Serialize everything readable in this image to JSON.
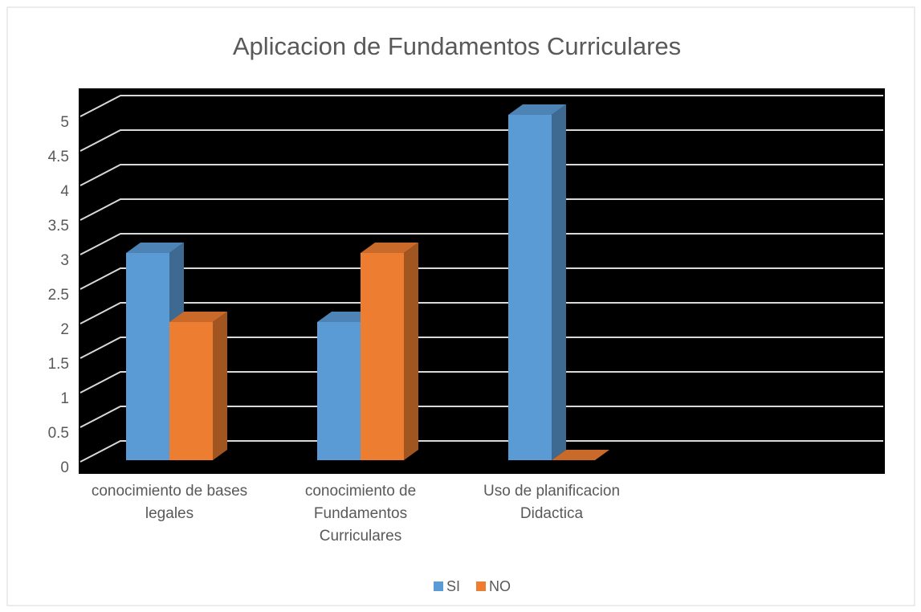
{
  "chart_data": {
    "type": "bar3d",
    "title": "Aplicacion de Fundamentos Curriculares",
    "categories": [
      "conocimiento de bases legales",
      "conocimiento de Fundamentos Curriculares",
      "Uso de planificacion Didactica",
      null
    ],
    "series": [
      {
        "name": "SI",
        "color": "#5b9bd5",
        "values": [
          3,
          2,
          5,
          null
        ]
      },
      {
        "name": "NO",
        "color": "#ed7d31",
        "values": [
          2,
          3,
          0,
          null
        ]
      }
    ],
    "ylim": [
      0,
      5
    ],
    "yticks": [
      0,
      0.5,
      1,
      1.5,
      2,
      2.5,
      3,
      3.5,
      4,
      4.5,
      5
    ],
    "grid": true,
    "legend": "bottom"
  }
}
